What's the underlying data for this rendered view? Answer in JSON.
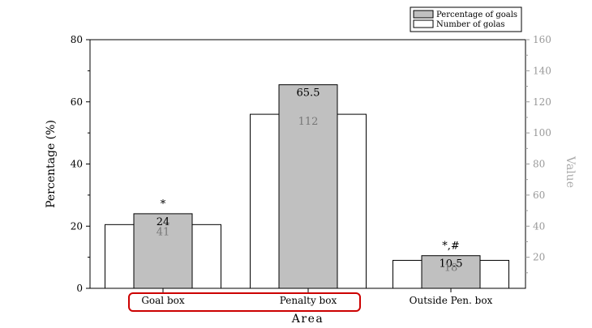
{
  "chart_data": {
    "type": "bar",
    "categories": [
      "Goal box",
      "Penalty box",
      "Outside Pen. box"
    ],
    "xlabel": "Area",
    "ylabel_left": "Percentage (%)",
    "ylabel_right": "Value",
    "ylim_left": [
      0,
      80
    ],
    "ylim_right": [
      0,
      160
    ],
    "yticks_left": [
      0,
      20,
      40,
      60,
      80
    ],
    "yticks_right": [
      20,
      40,
      60,
      80,
      100,
      120,
      140,
      160
    ],
    "legend_position": "top-right",
    "grid": false,
    "series": [
      {
        "name": "Percentage of goals",
        "axis": "left",
        "color": "#c0c0c0",
        "values": [
          24,
          65.5,
          10.5
        ],
        "labels": [
          "24",
          "65.5",
          "10.5"
        ]
      },
      {
        "name": "Number of golas",
        "axis": "right",
        "color": "#ffffff",
        "values": [
          41,
          112,
          18
        ],
        "labels": [
          "41",
          "112",
          "18"
        ]
      }
    ],
    "annotations": [
      "*",
      "",
      "*,#"
    ],
    "highlight_color": "#cc0000"
  }
}
